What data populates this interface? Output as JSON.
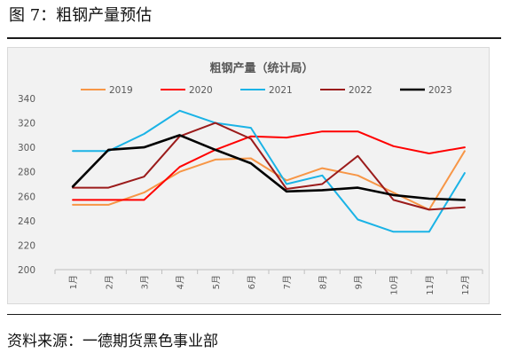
{
  "figure": {
    "title": "图 7：粗钢产量预估",
    "source": "资料来源：一德期货黑色事业部"
  },
  "chart_data": {
    "type": "line",
    "title": "粗钢产量（统计局）",
    "xlabel": "",
    "ylabel": "",
    "categories": [
      "1月",
      "2月",
      "3月",
      "4月",
      "5月",
      "6月",
      "7月",
      "8月",
      "9月",
      "10月",
      "11月",
      "12月"
    ],
    "ylim": [
      200,
      340
    ],
    "yticks": [
      200,
      220,
      240,
      260,
      280,
      300,
      320,
      340
    ],
    "grid": false,
    "legend_position": "top",
    "series": [
      {
        "name": "2019",
        "color": "#f79646",
        "values": [
          253,
          253,
          263,
          280,
          290,
          291,
          273,
          283,
          277,
          263,
          249,
          297
        ]
      },
      {
        "name": "2020",
        "color": "#ff0000",
        "values": [
          257,
          257,
          257,
          284,
          298,
          309,
          308,
          313,
          313,
          301,
          295,
          300
        ]
      },
      {
        "name": "2021",
        "color": "#1ab3e6",
        "values": [
          297,
          297,
          311,
          330,
          320,
          316,
          270,
          277,
          241,
          231,
          231,
          279
        ]
      },
      {
        "name": "2022",
        "color": "#9b1b1b",
        "values": [
          267,
          267,
          276,
          309,
          320,
          307,
          266,
          270,
          293,
          257,
          249,
          251
        ]
      },
      {
        "name": "2023",
        "color": "#000000",
        "values": [
          268,
          298,
          300,
          310,
          298,
          287,
          264,
          265,
          267,
          261,
          258,
          257
        ]
      }
    ]
  }
}
